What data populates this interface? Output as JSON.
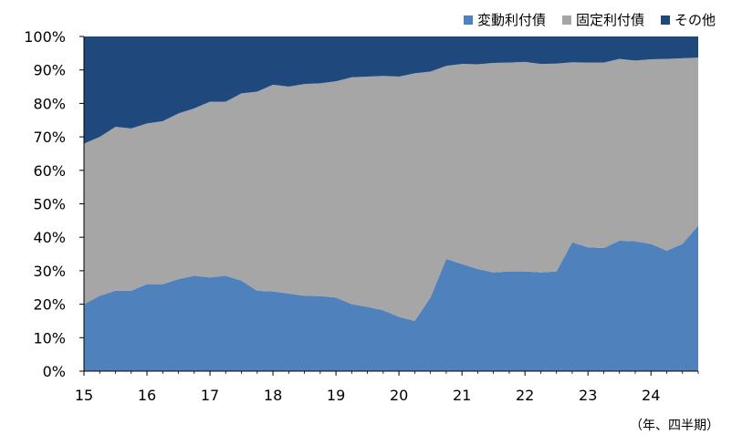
{
  "chart_data": {
    "type": "area",
    "stacked": true,
    "ylim": [
      0,
      100
    ],
    "yticks": [
      "0%",
      "10%",
      "20%",
      "30%",
      "40%",
      "50%",
      "60%",
      "70%",
      "80%",
      "90%",
      "100%"
    ],
    "xtick_labels": [
      "15",
      "16",
      "17",
      "18",
      "19",
      "20",
      "21",
      "22",
      "23",
      "24"
    ],
    "unit_label": "（年、四半期）",
    "legend_position": "top-right",
    "grid": false,
    "x": [
      "15Q1",
      "15Q2",
      "15Q3",
      "15Q4",
      "16Q1",
      "16Q2",
      "16Q3",
      "16Q4",
      "17Q1",
      "17Q2",
      "17Q3",
      "17Q4",
      "18Q1",
      "18Q2",
      "18Q3",
      "18Q4",
      "19Q1",
      "19Q2",
      "19Q3",
      "19Q4",
      "20Q1",
      "20Q2",
      "20Q3",
      "20Q4",
      "21Q1",
      "21Q2",
      "21Q3",
      "21Q4",
      "22Q1",
      "22Q2",
      "22Q3",
      "22Q4",
      "23Q1",
      "23Q2",
      "23Q3",
      "23Q4",
      "24Q1",
      "24Q2",
      "24Q3",
      "24Q4"
    ],
    "series": [
      {
        "name": "変動利付債",
        "color": "#4f81bd",
        "values": [
          20.0,
          22.5,
          24.0,
          24.0,
          26.0,
          26.0,
          27.5,
          28.5,
          28.0,
          28.5,
          27.0,
          24.0,
          23.8,
          23.2,
          22.5,
          22.4,
          22.0,
          20.0,
          19.2,
          18.2,
          16.2,
          15.0,
          22.0,
          33.5,
          32.0,
          30.5,
          29.5,
          29.8,
          29.8,
          29.5,
          29.8,
          38.5,
          37.0,
          36.8,
          39.0,
          38.8,
          38.0,
          36.0,
          38.0,
          43.5
        ]
      },
      {
        "name": "固定利付債",
        "color": "#a6a6a6",
        "values": [
          48.0,
          47.5,
          49.0,
          48.5,
          48.0,
          48.7,
          49.5,
          50.0,
          52.5,
          52.0,
          56.0,
          59.5,
          61.8,
          61.8,
          63.3,
          63.6,
          64.6,
          67.8,
          68.8,
          70.0,
          71.8,
          74.0,
          67.5,
          57.7,
          59.8,
          61.2,
          62.6,
          62.4,
          62.6,
          62.3,
          62.1,
          53.8,
          55.2,
          55.4,
          54.3,
          54.0,
          55.2,
          57.3,
          55.5,
          50.2
        ]
      },
      {
        "name": "その他",
        "color": "#1f497d",
        "values": [
          32.0,
          30.0,
          27.0,
          27.5,
          26.0,
          25.3,
          23.0,
          21.5,
          19.5,
          19.5,
          17.0,
          16.5,
          14.4,
          15.0,
          14.2,
          14.0,
          13.4,
          12.2,
          12.0,
          11.8,
          12.0,
          11.0,
          10.5,
          8.8,
          8.2,
          8.3,
          7.9,
          7.8,
          7.6,
          8.2,
          8.1,
          7.7,
          7.8,
          7.8,
          6.7,
          7.2,
          6.8,
          6.7,
          6.5,
          6.3
        ]
      }
    ]
  }
}
